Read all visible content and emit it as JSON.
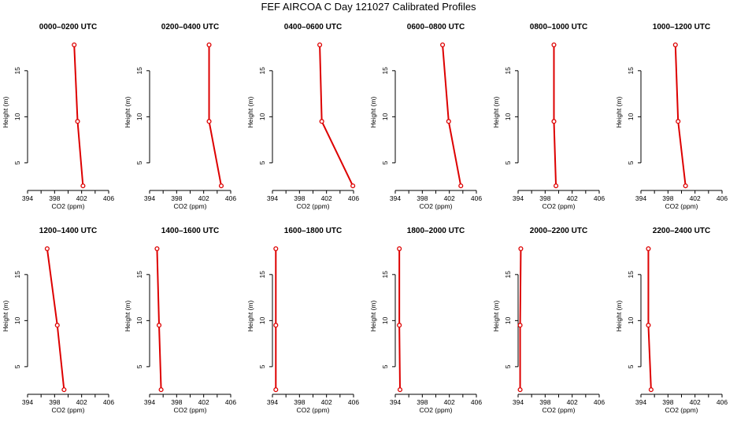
{
  "title": "FEF AIRCOA C  Day 121027  Calibrated Profiles",
  "colors": {
    "line": "#dd0000",
    "axis": "#000000"
  },
  "chart_data": {
    "type": "line",
    "xlabel": "CO2 (ppm)",
    "ylabel": "Height (m)",
    "xlim": [
      394,
      406
    ],
    "ylim": [
      2,
      19
    ],
    "xticks": [
      "394",
      "398",
      "402",
      "406"
    ],
    "yticks": [
      "5",
      "10",
      "15"
    ],
    "heights": [
      2.5,
      9.5,
      17.8
    ],
    "panels": [
      {
        "title": "0000–0200 UTC",
        "co2": [
          402.2,
          401.4,
          400.9
        ]
      },
      {
        "title": "0200–0400 UTC",
        "co2": [
          404.6,
          402.8,
          402.8
        ]
      },
      {
        "title": "0400–0600 UTC",
        "co2": [
          405.9,
          401.3,
          401.0
        ]
      },
      {
        "title": "0600–0800 UTC",
        "co2": [
          403.7,
          401.9,
          401.0
        ]
      },
      {
        "title": "0800–1000 UTC",
        "co2": [
          399.6,
          399.3,
          399.3
        ]
      },
      {
        "title": "1000–1200 UTC",
        "co2": [
          400.6,
          399.5,
          399.1
        ]
      },
      {
        "title": "1200–1400 UTC",
        "co2": [
          399.4,
          398.4,
          396.9
        ]
      },
      {
        "title": "1400–1600 UTC",
        "co2": [
          395.7,
          395.4,
          395.1
        ]
      },
      {
        "title": "1600–1800 UTC",
        "co2": [
          394.5,
          394.5,
          394.5
        ]
      },
      {
        "title": "1800–2000 UTC",
        "co2": [
          394.7,
          394.6,
          394.6
        ]
      },
      {
        "title": "2000–2200 UTC",
        "co2": [
          394.3,
          394.3,
          394.4
        ]
      },
      {
        "title": "2200–2400 UTC",
        "co2": [
          395.5,
          395.1,
          395.1
        ]
      }
    ]
  }
}
